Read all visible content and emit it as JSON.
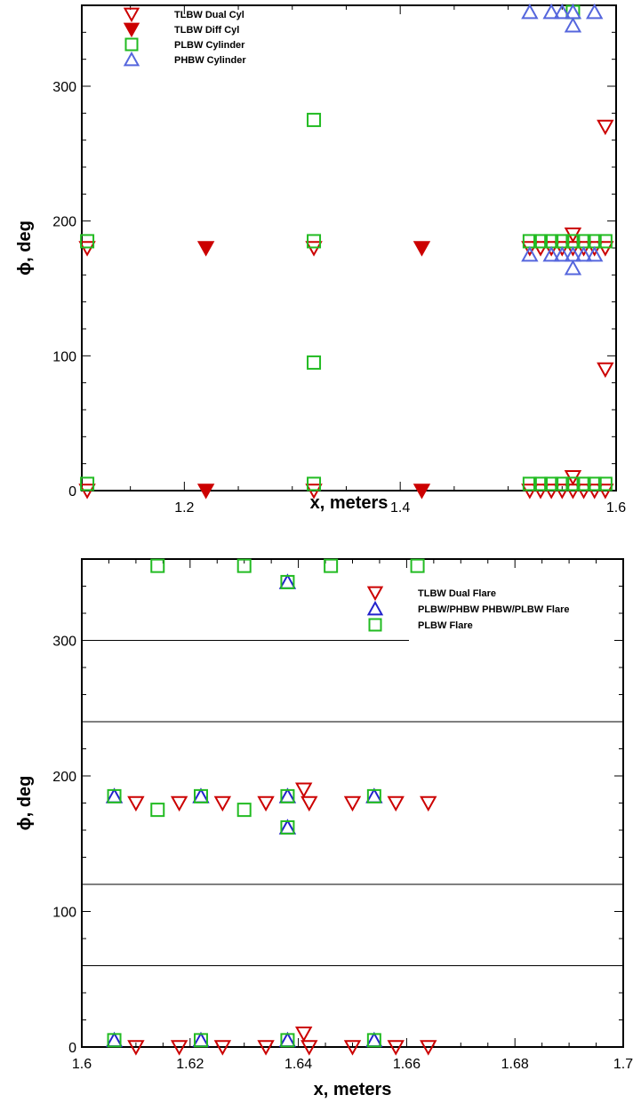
{
  "chart_data": [
    {
      "type": "scatter",
      "title": "",
      "xlabel": "x, meters",
      "ylabel": "ϕ, deg",
      "xlim": [
        1.105,
        1.6
      ],
      "ylim": [
        0,
        360
      ],
      "xticks": [
        1.2,
        1.4,
        1.6
      ],
      "yticks": [
        0,
        100,
        200,
        300
      ],
      "grid": false,
      "legend_position": "top-left",
      "series": [
        {
          "name": "TLBW Dual Cyl",
          "marker": "triangle-down-open",
          "color": "#cc0000",
          "points": [
            [
              1.11,
              180
            ],
            [
              1.11,
              0
            ],
            [
              1.32,
              180
            ],
            [
              1.32,
              0
            ],
            [
              1.52,
              180
            ],
            [
              1.53,
              180
            ],
            [
              1.54,
              180
            ],
            [
              1.55,
              180
            ],
            [
              1.56,
              180
            ],
            [
              1.57,
              180
            ],
            [
              1.58,
              180
            ],
            [
              1.59,
              180
            ],
            [
              1.52,
              0
            ],
            [
              1.53,
              0
            ],
            [
              1.54,
              0
            ],
            [
              1.55,
              0
            ],
            [
              1.56,
              0
            ],
            [
              1.57,
              0
            ],
            [
              1.58,
              0
            ],
            [
              1.59,
              0
            ],
            [
              1.56,
              190
            ],
            [
              1.56,
              10
            ],
            [
              1.59,
              270
            ],
            [
              1.59,
              90
            ]
          ]
        },
        {
          "name": "TLBW Diff Cyl",
          "marker": "triangle-down-filled",
          "color": "#cc0000",
          "points": [
            [
              1.22,
              180
            ],
            [
              1.22,
              0
            ],
            [
              1.42,
              180
            ],
            [
              1.42,
              0
            ]
          ]
        },
        {
          "name": "PLBW Cylinder",
          "marker": "square-open",
          "color": "#22bb22",
          "points": [
            [
              1.11,
              185
            ],
            [
              1.11,
              5
            ],
            [
              1.32,
              275
            ],
            [
              1.32,
              185
            ],
            [
              1.32,
              95
            ],
            [
              1.32,
              5
            ],
            [
              1.52,
              185
            ],
            [
              1.53,
              185
            ],
            [
              1.54,
              185
            ],
            [
              1.55,
              185
            ],
            [
              1.56,
              185
            ],
            [
              1.57,
              185
            ],
            [
              1.58,
              185
            ],
            [
              1.59,
              185
            ],
            [
              1.52,
              5
            ],
            [
              1.53,
              5
            ],
            [
              1.54,
              5
            ],
            [
              1.55,
              5
            ],
            [
              1.56,
              5
            ],
            [
              1.57,
              5
            ],
            [
              1.58,
              5
            ],
            [
              1.59,
              5
            ],
            [
              1.56,
              355
            ]
          ]
        },
        {
          "name": "PHBW Cylinder",
          "marker": "triangle-up-open",
          "color": "#5566dd",
          "points": [
            [
              1.52,
              175
            ],
            [
              1.54,
              175
            ],
            [
              1.55,
              175
            ],
            [
              1.56,
              175
            ],
            [
              1.57,
              175
            ],
            [
              1.58,
              175
            ],
            [
              1.56,
              165
            ],
            [
              1.52,
              355
            ],
            [
              1.54,
              355
            ],
            [
              1.55,
              355
            ],
            [
              1.56,
              355
            ],
            [
              1.58,
              355
            ],
            [
              1.56,
              345
            ]
          ]
        }
      ]
    },
    {
      "type": "scatter",
      "title": "",
      "xlabel": "x, meters",
      "ylabel": "ϕ, deg",
      "xlim": [
        1.6,
        1.7
      ],
      "ylim": [
        0,
        360
      ],
      "xticks": [
        1.6,
        1.62,
        1.64,
        1.66,
        1.68,
        1.7
      ],
      "yticks": [
        0,
        100,
        200,
        300
      ],
      "reference_lines_y": [
        60,
        120,
        240,
        300
      ],
      "grid": false,
      "legend_position": "top-right",
      "series": [
        {
          "name": "TLBW Dual Flare",
          "marker": "triangle-down-open",
          "color": "#cc0000",
          "points": [
            [
              1.61,
              180
            ],
            [
              1.618,
              180
            ],
            [
              1.626,
              180
            ],
            [
              1.634,
              180
            ],
            [
              1.642,
              180
            ],
            [
              1.65,
              180
            ],
            [
              1.658,
              180
            ],
            [
              1.664,
              180
            ],
            [
              1.641,
              190
            ],
            [
              1.61,
              0
            ],
            [
              1.618,
              0
            ],
            [
              1.626,
              0
            ],
            [
              1.634,
              0
            ],
            [
              1.642,
              0
            ],
            [
              1.65,
              0
            ],
            [
              1.658,
              0
            ],
            [
              1.664,
              0
            ],
            [
              1.641,
              10
            ]
          ]
        },
        {
          "name": "PLBW/PHBW PHBW/PLBW Flare",
          "marker": "triangle-up-open",
          "color": "#2222cc",
          "points": [
            [
              1.606,
              185
            ],
            [
              1.622,
              185
            ],
            [
              1.638,
              185
            ],
            [
              1.654,
              185
            ],
            [
              1.638,
              162
            ],
            [
              1.638,
              343
            ],
            [
              1.606,
              5
            ],
            [
              1.622,
              5
            ],
            [
              1.638,
              5
            ],
            [
              1.654,
              5
            ]
          ]
        },
        {
          "name": "PLBW Flare",
          "marker": "square-open",
          "color": "#22bb22",
          "points": [
            [
              1.606,
              185
            ],
            [
              1.622,
              185
            ],
            [
              1.638,
              185
            ],
            [
              1.654,
              185
            ],
            [
              1.614,
              175
            ],
            [
              1.63,
              175
            ],
            [
              1.638,
              162
            ],
            [
              1.614,
              355
            ],
            [
              1.63,
              355
            ],
            [
              1.646,
              355
            ],
            [
              1.662,
              355
            ],
            [
              1.638,
              343
            ],
            [
              1.606,
              5
            ],
            [
              1.622,
              5
            ],
            [
              1.638,
              5
            ],
            [
              1.654,
              5
            ]
          ]
        }
      ]
    }
  ]
}
